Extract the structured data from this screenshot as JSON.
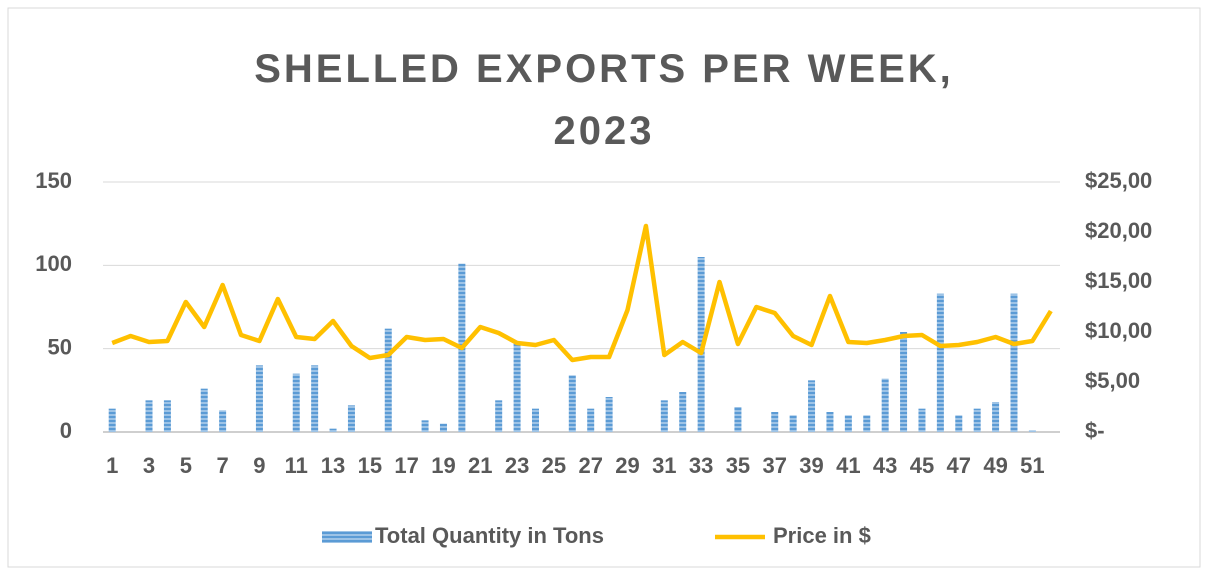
{
  "chart_data": {
    "type": "bar-line",
    "title": "SHELLED EXPORTS PER WEEK, 2023",
    "categories": [
      "1",
      null,
      "3",
      null,
      "5",
      null,
      "7",
      null,
      "9",
      null,
      "11",
      null,
      "13",
      null,
      "15",
      null,
      "17",
      null,
      "19",
      null,
      "21",
      null,
      "23",
      null,
      "25",
      null,
      "27",
      null,
      "29",
      null,
      "31",
      null,
      "33",
      null,
      "35",
      null,
      "37",
      null,
      "39",
      null,
      "41",
      null,
      "43",
      null,
      "45",
      null,
      "47",
      null,
      "49",
      null,
      "51",
      null
    ],
    "series": [
      {
        "name": "Total Quantity in Tons",
        "type": "bar",
        "color": "#5b9bd5",
        "axis": "y",
        "values": [
          14,
          0,
          19,
          19,
          0,
          26,
          13,
          0,
          40,
          0,
          35,
          40,
          2,
          16,
          0,
          62,
          0,
          7,
          5,
          101,
          0,
          19,
          53,
          14,
          0,
          34,
          14,
          21,
          0,
          0,
          19,
          24,
          105,
          0,
          15,
          0,
          12,
          10,
          31,
          12,
          10,
          10,
          32,
          60,
          14,
          83,
          10,
          14,
          18,
          83,
          1,
          0
        ]
      },
      {
        "name": "Price in $",
        "type": "line",
        "color": "#ffc000",
        "axis": "y2",
        "values": [
          8.9,
          9.6,
          9.0,
          9.1,
          13.0,
          10.5,
          14.7,
          9.7,
          9.1,
          13.3,
          9.5,
          9.3,
          11.1,
          8.6,
          7.4,
          7.7,
          9.5,
          9.2,
          9.3,
          8.4,
          10.5,
          9.9,
          8.9,
          8.7,
          9.2,
          7.2,
          7.5,
          7.5,
          12.2,
          20.6,
          7.7,
          9.0,
          7.9,
          15.0,
          8.8,
          12.5,
          11.9,
          9.6,
          8.7,
          13.6,
          9.0,
          8.9,
          9.2,
          9.6,
          9.7,
          8.6,
          8.7,
          9.0,
          9.5,
          8.8,
          9.1,
          12.1
        ]
      }
    ],
    "ylim": [
      0,
      150
    ],
    "yticks": [
      0,
      50,
      100,
      150
    ],
    "y2lim": [
      0,
      25
    ],
    "y2ticks": [
      {
        "value": 0,
        "label": "$-"
      },
      {
        "value": 5,
        "label": "$5,00"
      },
      {
        "value": 10,
        "label": "$10,00"
      },
      {
        "value": 15,
        "label": "$15,00"
      },
      {
        "value": 20,
        "label": "$20,00"
      },
      {
        "value": 25,
        "label": "$25,00"
      }
    ],
    "grid": true,
    "legend": "bottom"
  }
}
